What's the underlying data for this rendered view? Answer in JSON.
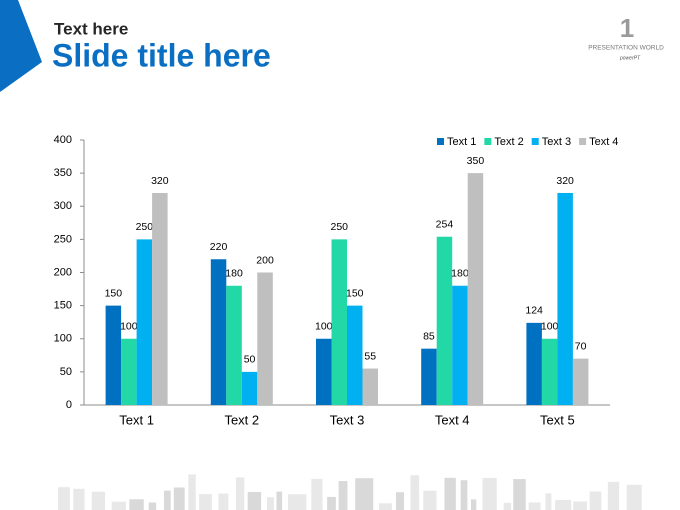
{
  "header": {
    "kicker": "Text here",
    "title": "Slide title here",
    "logo_line1": "PRESENTATION WORLD",
    "logo_line2": "powerPT"
  },
  "chart_data": {
    "type": "bar",
    "categories": [
      "Text 1",
      "Text 2",
      "Text 3",
      "Text 4",
      "Text 5"
    ],
    "series": [
      {
        "name": "Text 1",
        "color": "#0070c0",
        "values": [
          150,
          220,
          100,
          85,
          124
        ]
      },
      {
        "name": "Text 2",
        "color": "#22d8a6",
        "values": [
          100,
          180,
          250,
          254,
          100
        ]
      },
      {
        "name": "Text 3",
        "color": "#00b0f0",
        "values": [
          250,
          50,
          150,
          180,
          320
        ]
      },
      {
        "name": "Text 4",
        "color": "#bfbfbf",
        "values": [
          320,
          200,
          55,
          350,
          70
        ]
      }
    ],
    "ylim": [
      0,
      400
    ],
    "yticks": [
      0,
      50,
      100,
      150,
      200,
      250,
      300,
      350,
      400
    ],
    "grid": false,
    "legend": "top-right",
    "data_labels": true
  }
}
